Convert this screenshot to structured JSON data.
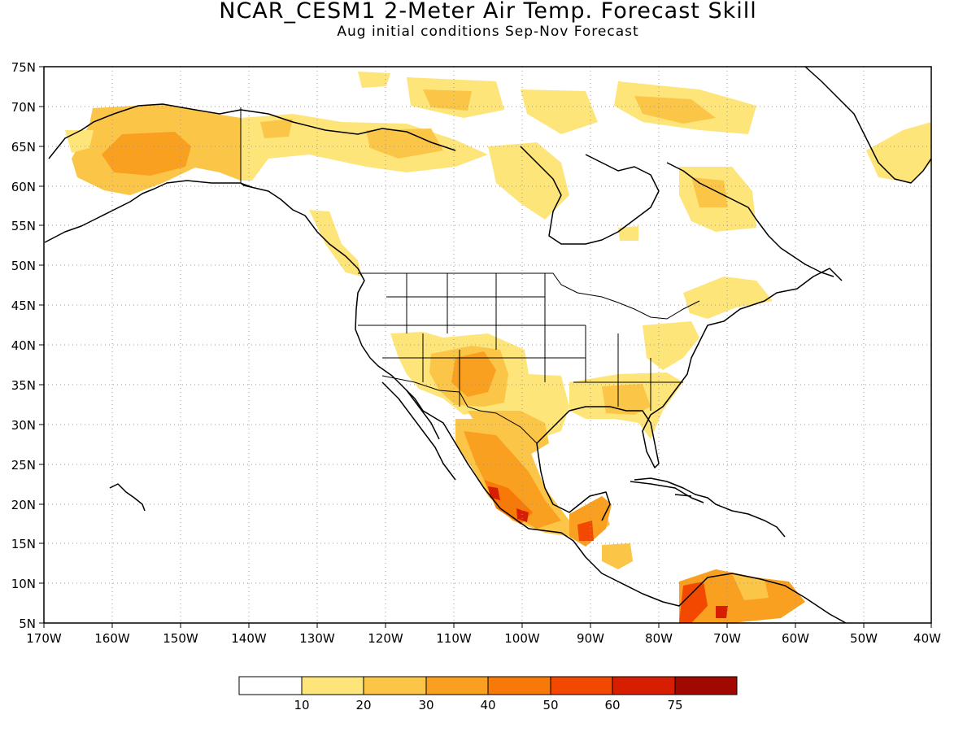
{
  "title": "NCAR_CESM1 2-Meter Air Temp. Forecast Skill",
  "subtitle": "Aug initial conditions  Sep-Nov Forecast",
  "lat_labels": [
    "75N",
    "70N",
    "65N",
    "60N",
    "55N",
    "50N",
    "45N",
    "40N",
    "35N",
    "30N",
    "25N",
    "20N",
    "15N",
    "10N",
    "5N"
  ],
  "lon_labels": [
    "170W",
    "160W",
    "150W",
    "140W",
    "130W",
    "120W",
    "110W",
    "100W",
    "90W",
    "80W",
    "70W",
    "60W",
    "50W",
    "40W"
  ],
  "map_extent": {
    "lon_min": -170,
    "lon_max": -40,
    "lat_min": 5,
    "lat_max": 75
  },
  "legend": {
    "labels": [
      "10",
      "20",
      "30",
      "40",
      "50",
      "60",
      "75"
    ],
    "colors": [
      "#ffffff",
      "#fde57a",
      "#fbc648",
      "#f9a020",
      "#f77a08",
      "#f34800",
      "#d81e00",
      "#a00800"
    ]
  },
  "colors": {
    "skill_10_20": "#fde57a",
    "skill_20_30": "#fbc648",
    "skill_30_40": "#f9a020",
    "skill_40_50": "#f77a08",
    "skill_50_60": "#f34800",
    "skill_60_75": "#d81e00",
    "skill_75_plus": "#a00800"
  }
}
